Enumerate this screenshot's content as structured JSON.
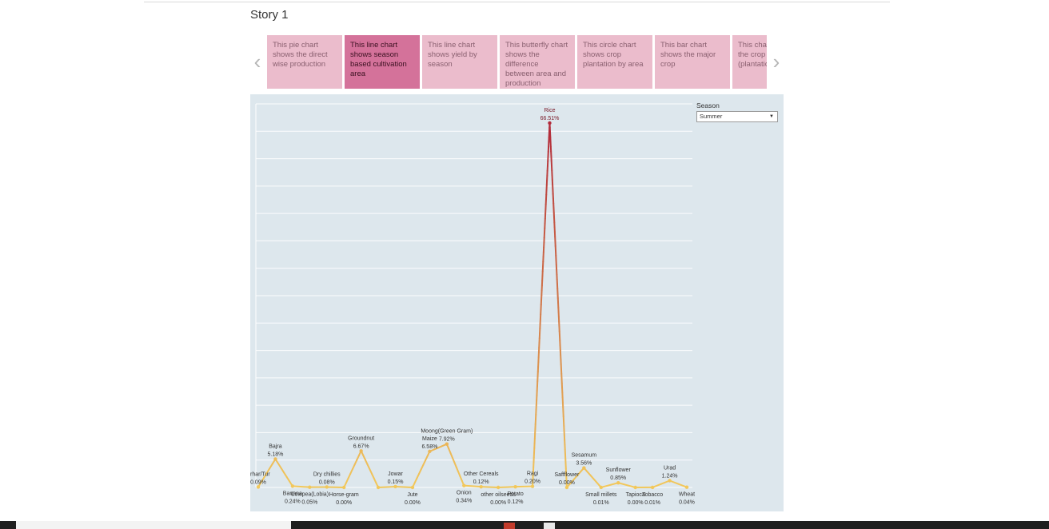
{
  "story": {
    "title": "Story 1"
  },
  "nav": {
    "prev_icon": "chevron-left-icon",
    "next_icon": "chevron-right-icon"
  },
  "story_points": [
    {
      "text": "This pie chart shows the direct wise production",
      "active": false
    },
    {
      "text": "This line chart shows season based cultivation area",
      "active": true
    },
    {
      "text": "This line chart shows yield by season",
      "active": false
    },
    {
      "text": "This butterfly chart shows the difference between area and production",
      "active": false
    },
    {
      "text": "This circle chart shows crop plantation by area",
      "active": false
    },
    {
      "text": "This bar chart shows the major crop",
      "active": false
    },
    {
      "text": "This chart shows the crop (plantation count)",
      "active": false
    }
  ],
  "filter": {
    "title": "Season",
    "selected": "Summer"
  },
  "colors": {
    "active_card": "#d4729a",
    "card": "#ebbccc",
    "line_low": "#f2c85b",
    "line_high": "#b22a3a",
    "panel_bg": "#dde7ed"
  },
  "chart_data": {
    "type": "line",
    "title": "",
    "xlabel": "",
    "ylabel": "",
    "ylim": [
      0,
      70
    ],
    "grid": true,
    "categories": [
      "Arhar/Tur",
      "Bajra",
      "Banana",
      "Cowpea(Lobia)",
      "Dry chillies",
      "Horse-gram",
      "Groundnut",
      "Horse-gram",
      "Jowar",
      "Jute",
      "Maize",
      "Moong(Green Gram)",
      "Onion",
      "Other Cereals",
      "other oilseeds",
      "Potato",
      "Ragi",
      "Rice",
      "Saffflower",
      "Sesamum",
      "Small millets",
      "Sunflower",
      "Tapioca",
      "Tobacco",
      "Urad",
      "Wheat"
    ],
    "series": [
      {
        "values": [
          0.09,
          5.18,
          0.24,
          0.05,
          0.08,
          0.0,
          6.67,
          0.0,
          0.15,
          0.0,
          6.58,
          7.92,
          0.34,
          0.12,
          0.0,
          0.12,
          0.2,
          66.51,
          0.0,
          3.56,
          0.01,
          0.85,
          0.0,
          0.01,
          1.24,
          0.04
        ]
      }
    ],
    "labels": [
      {
        "name": "Arhar/Tur",
        "value": "0.09%",
        "pos": "top",
        "emph": false
      },
      {
        "name": "Bajra",
        "value": "5.18%",
        "pos": "top",
        "emph": false
      },
      {
        "name": "Banana",
        "value": "0.24%",
        "pos": "bottom",
        "emph": false
      },
      {
        "name": "Cowpea(Lobia)",
        "value": "0.05%",
        "pos": "bottom",
        "emph": false
      },
      {
        "name": "Dry chillies",
        "value": "0.08%",
        "pos": "top",
        "emph": false
      },
      {
        "name": "Horse-gram",
        "value": "0.00%",
        "pos": "bottom",
        "emph": false
      },
      {
        "name": "Groundnut",
        "value": "6.67%",
        "pos": "top",
        "emph": false
      },
      {
        "name": "",
        "value": "",
        "pos": "none",
        "emph": false
      },
      {
        "name": "Jowar",
        "value": "0.15%",
        "pos": "top",
        "emph": false
      },
      {
        "name": "Jute",
        "value": "0.00%",
        "pos": "bottom",
        "emph": false
      },
      {
        "name": "Maize",
        "value": "6.58%",
        "pos": "top",
        "emph": false
      },
      {
        "name": "Moong(Green Gram)",
        "value": "7.92%",
        "pos": "top",
        "emph": false
      },
      {
        "name": "Onion",
        "value": "0.34%",
        "pos": "bottom",
        "emph": false
      },
      {
        "name": "Other Cereals",
        "value": "0.12%",
        "pos": "top",
        "emph": false
      },
      {
        "name": "other oilseeds",
        "value": "0.00%",
        "pos": "bottom",
        "emph": false
      },
      {
        "name": "Potato",
        "value": "0.12%",
        "pos": "bottom",
        "emph": false
      },
      {
        "name": "Ragi",
        "value": "0.20%",
        "pos": "top",
        "emph": false
      },
      {
        "name": "Rice",
        "value": "66.51%",
        "pos": "top",
        "emph": true
      },
      {
        "name": "Saffflower",
        "value": "0.00%",
        "pos": "top",
        "emph": false
      },
      {
        "name": "Sesamum",
        "value": "3.56%",
        "pos": "top",
        "emph": false
      },
      {
        "name": "Small millets",
        "value": "0.01%",
        "pos": "bottom",
        "emph": false
      },
      {
        "name": "Sunflower",
        "value": "0.85%",
        "pos": "top",
        "emph": false
      },
      {
        "name": "Tapioca",
        "value": "0.00%",
        "pos": "bottom",
        "emph": false
      },
      {
        "name": "Tobacco",
        "value": "0.01%",
        "pos": "bottom",
        "emph": false
      },
      {
        "name": "Urad",
        "value": "1.24%",
        "pos": "top",
        "emph": false
      },
      {
        "name": "Wheat",
        "value": "0.04%",
        "pos": "bottom",
        "emph": false
      }
    ]
  }
}
